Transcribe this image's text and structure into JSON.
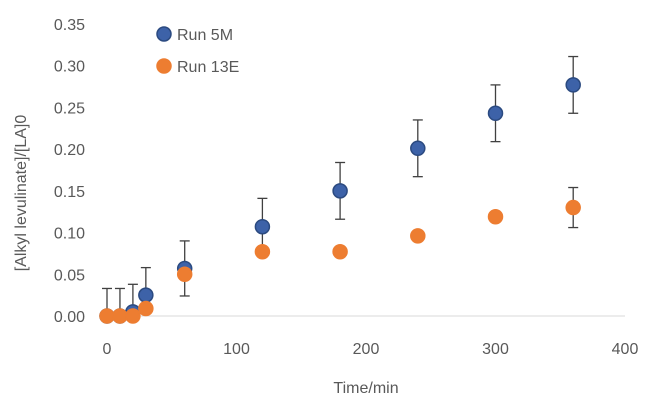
{
  "chart_data": {
    "type": "scatter",
    "title": "",
    "xlabel": "Time/min",
    "ylabel": "[Alkyl levulinate]/[LA]0",
    "xlim": [
      0,
      400
    ],
    "ylim": [
      0,
      0.35
    ],
    "x_ticks": [
      "0",
      "100",
      "200",
      "300",
      "400"
    ],
    "y_ticks": [
      "0.00",
      "0.05",
      "0.10",
      "0.15",
      "0.20",
      "0.25",
      "0.30",
      "0.35"
    ],
    "grid": false,
    "legend_position": "top-left",
    "series": [
      {
        "name": "Run 5M",
        "color": "#3d62a8",
        "edge_color": "#2b4a80",
        "x": [
          0,
          10,
          20,
          30,
          60,
          120,
          180,
          240,
          300,
          360
        ],
        "y": [
          0.0,
          0.0,
          0.005,
          0.025,
          0.057,
          0.107,
          0.15,
          0.201,
          0.243,
          0.277
        ],
        "error": [
          0.033,
          0.033,
          0.033,
          0.033,
          0.033,
          0.034,
          0.034,
          0.034,
          0.034,
          0.034
        ]
      },
      {
        "name": "Run 13E",
        "color": "#ed7d31",
        "edge_color": "#ed7d31",
        "x": [
          0,
          10,
          20,
          30,
          60,
          120,
          180,
          240,
          300,
          360
        ],
        "y": [
          0.0,
          0.0,
          0.0,
          0.009,
          0.05,
          0.077,
          0.077,
          0.096,
          0.119,
          0.13
        ],
        "error": [
          0,
          0,
          0,
          0,
          0,
          0,
          0.006,
          0,
          0,
          0.024
        ]
      }
    ]
  }
}
